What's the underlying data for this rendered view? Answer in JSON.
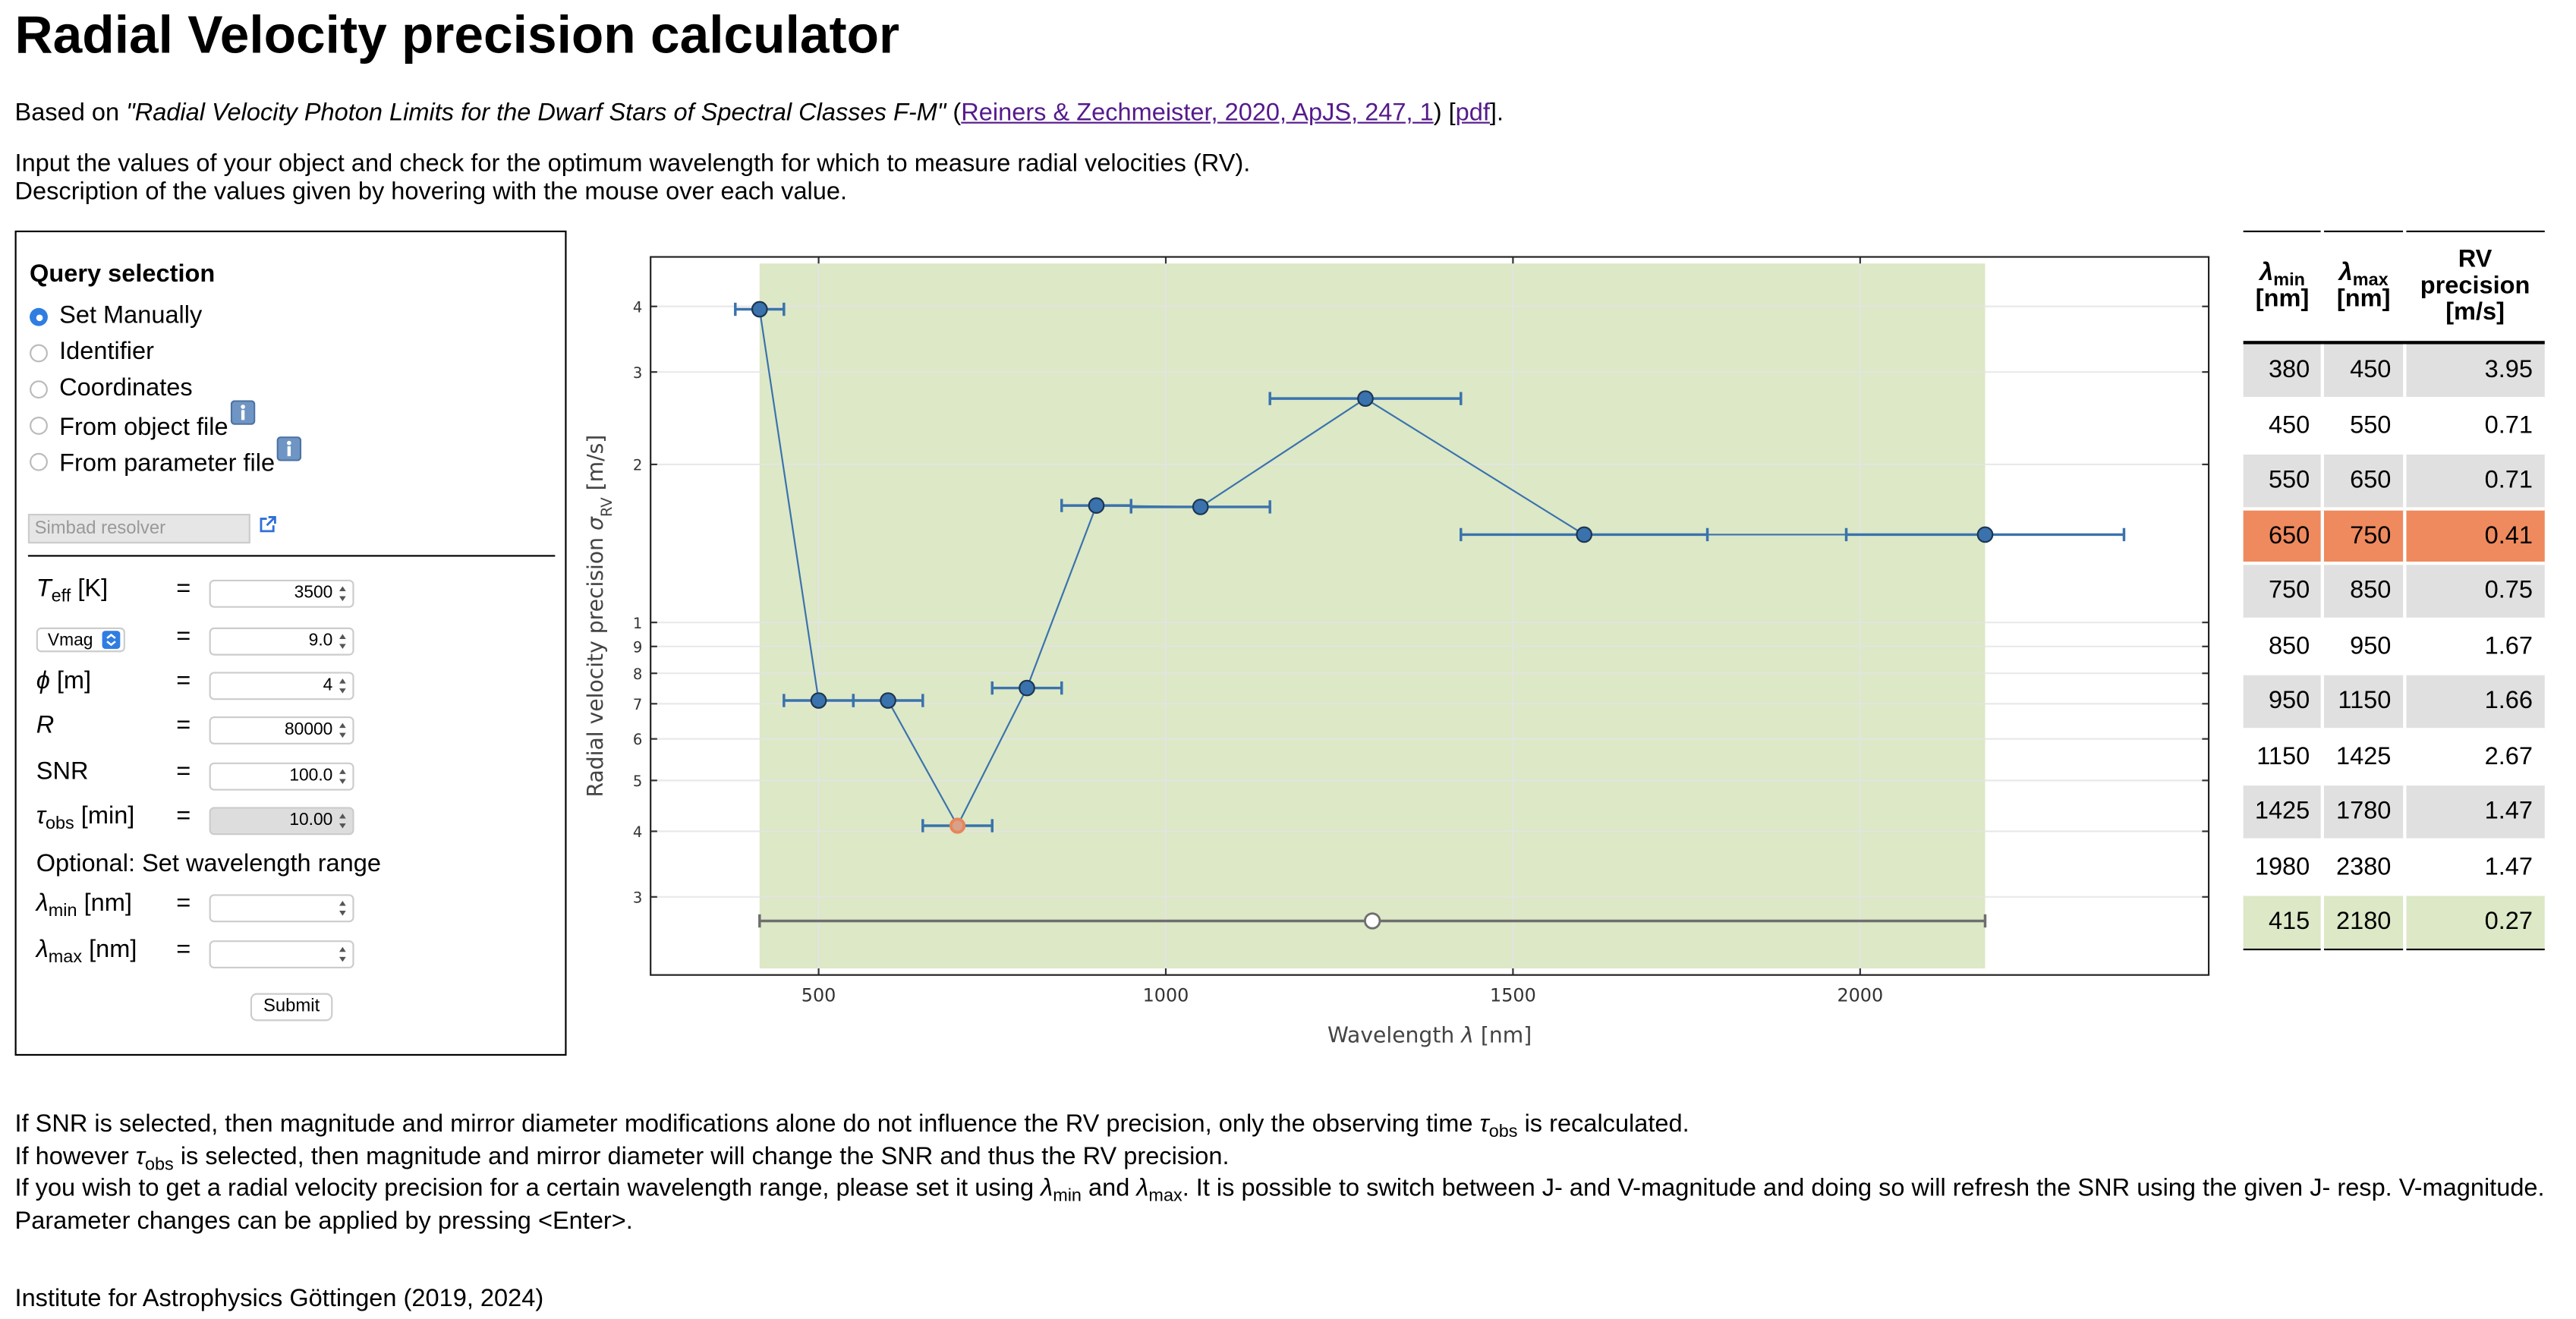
{
  "header": {
    "title": "Radial Velocity precision calculator"
  },
  "intro": {
    "prefix": "Based on ",
    "paper": "\"Radial Velocity Photon Limits for the Dwarf Stars of Spectral Classes F-M\"",
    "open": " (",
    "link": "Reiners & Zechmeister, 2020, ApJS, 247, 1",
    "mid": ") [",
    "pdf": "pdf",
    "close": "]."
  },
  "instructions": [
    "Input the values of your object and check for the optimum wavelength for which to measure radial velocities (RV).",
    "Description of the values given by hovering with the mouse over each value."
  ],
  "query": {
    "title": "Query selection",
    "options": [
      {
        "label": "Set Manually",
        "selected": true
      },
      {
        "label": "Identifier"
      },
      {
        "label": "Coordinates"
      },
      {
        "label": "From object file",
        "info": true
      },
      {
        "label": "From parameter file",
        "info": true
      }
    ],
    "resolver_placeholder": "Simbad resolver",
    "equals": "=",
    "params": [
      {
        "label": [
          {
            "main": "T",
            "sub": "eff"
          },
          " [K]"
        ],
        "value": "3500"
      },
      {
        "select": "Vmag",
        "value": "9.0"
      },
      {
        "label": [
          {
            "main": "ϕ"
          },
          " [m]"
        ],
        "value": "4"
      },
      {
        "label": [
          {
            "main": "R"
          }
        ],
        "value": "80000"
      },
      {
        "label": [
          "SNR"
        ],
        "value": "100.0"
      },
      {
        "label": [
          {
            "main": "τ",
            "sub": "obs"
          },
          " [min]"
        ],
        "value": "10.00",
        "disabled": true
      }
    ],
    "optional": "Optional: Set wavelength range",
    "range": [
      {
        "label": [
          {
            "main": "λ",
            "sub": "min"
          },
          " [nm]"
        ]
      },
      {
        "label": [
          {
            "main": "λ",
            "sub": "max"
          },
          " [nm]"
        ]
      }
    ],
    "submit": "Submit"
  },
  "chart_data": {
    "type": "scatter",
    "xlabel": [
      "Wavelength ",
      {
        "main": "λ"
      },
      " [nm]"
    ],
    "ylabel": [
      "Radial velocity precision ",
      {
        "main": "σ",
        "sub": "RV"
      },
      " [m/s]"
    ],
    "xlim": [
      258,
      2502
    ],
    "ylim": [
      0.213,
      4.97
    ],
    "log_y": true,
    "grid": true,
    "xticks": [
      500,
      1000,
      1500,
      2000
    ],
    "yticks": [
      {
        "value": 0.3,
        "label": "3"
      },
      {
        "value": 0.4,
        "label": "4"
      },
      {
        "value": 0.5,
        "label": "5"
      },
      {
        "value": 0.6,
        "label": "6"
      },
      {
        "value": 0.7,
        "label": "7"
      },
      {
        "value": 0.8,
        "label": "8"
      },
      {
        "value": 0.9,
        "label": "9"
      },
      1,
      2,
      3,
      4
    ],
    "series": [
      {
        "color": "#3a72ad",
        "highlight_color": "#e8855a",
        "x_min": [
          380,
          450,
          550,
          650,
          750,
          850,
          950,
          1150,
          1425,
          1980
        ],
        "x_max": [
          450,
          550,
          650,
          750,
          850,
          950,
          1150,
          1425,
          1780,
          2380
        ],
        "values": [
          3.95,
          0.71,
          0.71,
          0.41,
          0.75,
          1.67,
          1.66,
          2.67,
          1.47,
          1.47
        ]
      },
      {
        "color": "#6e6e6e",
        "marker": "open",
        "band_color": "#dce8c6",
        "x_min": [
          415
        ],
        "x_max": [
          2180
        ],
        "values": [
          0.27
        ]
      }
    ]
  },
  "table": {
    "headers": [
      {
        "main": "λ",
        "sub": "min",
        "unit": "[nm]"
      },
      {
        "main": "λ",
        "sub": "max",
        "unit": "[nm]"
      },
      {
        "text": "RV precision [m/s]"
      }
    ],
    "stripe_color": "#e0e0e0",
    "highlight_color": "#ef8a5e",
    "total_color": "#dce8c6"
  },
  "notes": [
    [
      "If SNR is selected, then magnitude and mirror diameter modifications alone do not influence the RV precision, only the observing time ",
      {
        "main": "τ",
        "sub": "obs"
      },
      " is recalculated."
    ],
    [
      "If however ",
      {
        "main": "τ",
        "sub": "obs"
      },
      " is selected, then magnitude and mirror diameter will change the SNR and thus the RV precision."
    ],
    [
      "If you wish to get a radial velocity precision for a certain wavelength range, please set it using ",
      {
        "main": "λ",
        "sub": "min"
      },
      " and ",
      {
        "main": "λ",
        "sub": "max"
      },
      ". It is possible to switch between J- and V-magnitude and doing so will refresh the SNR using the given J- resp. V-magnitude."
    ],
    [
      "Parameter changes can be applied by pressing <Enter>."
    ]
  ],
  "footer": "Institute for Astrophysics Göttingen (2019, 2024)"
}
